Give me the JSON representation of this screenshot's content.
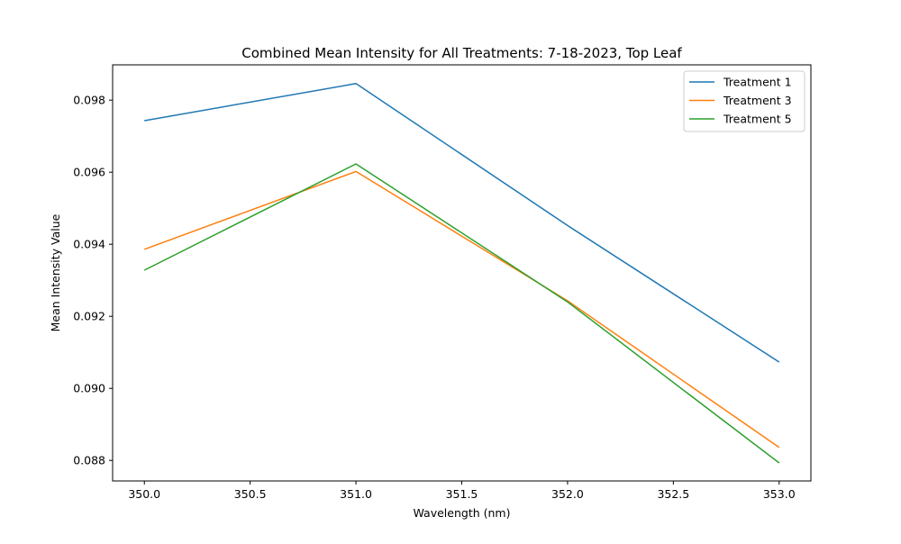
{
  "chart_data": {
    "type": "line",
    "title": "Combined Mean Intensity for All Treatments: 7-18-2023, Top Leaf",
    "xlabel": "Wavelength (nm)",
    "ylabel": "Mean Intensity Value",
    "x": [
      350.0,
      351.0,
      352.0,
      353.0
    ],
    "xlim": [
      349.85,
      353.15
    ],
    "ylim": [
      0.08743,
      0.09898
    ],
    "xticks": [
      "350.0",
      "350.5",
      "351.0",
      "351.5",
      "352.0",
      "352.5",
      "353.0"
    ],
    "yticks": [
      "0.088",
      "0.090",
      "0.092",
      "0.094",
      "0.096",
      "0.098"
    ],
    "grid": false,
    "legend_position": "top-right",
    "series": [
      {
        "name": "Treatment 1",
        "color": "#1f77b4",
        "values": [
          0.09743,
          0.09846,
          0.09452,
          0.09073
        ]
      },
      {
        "name": "Treatment 3",
        "color": "#ff7f0e",
        "values": [
          0.09386,
          0.09602,
          0.09243,
          0.08836
        ]
      },
      {
        "name": "Treatment 5",
        "color": "#2ca02c",
        "values": [
          0.09328,
          0.09623,
          0.0924,
          0.08793
        ]
      }
    ]
  }
}
